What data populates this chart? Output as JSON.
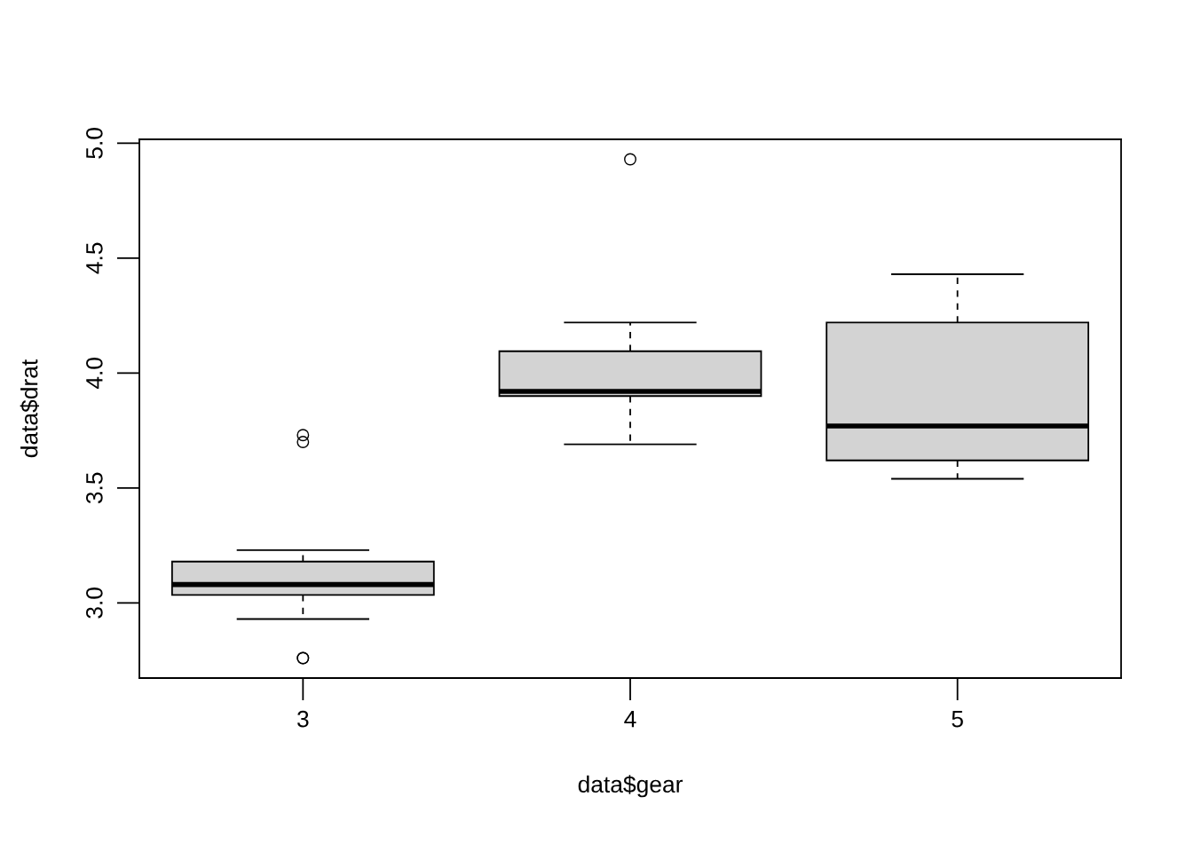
{
  "chart_data": {
    "type": "box",
    "xlabel": "data$gear",
    "ylabel": "data$drat",
    "categories": [
      "3",
      "4",
      "5"
    ],
    "boxes": [
      {
        "low": 2.93,
        "q1": 3.035,
        "median": 3.08,
        "q3": 3.18,
        "high": 3.23,
        "outliers": [
          2.76,
          2.76,
          3.7,
          3.73
        ]
      },
      {
        "low": 3.69,
        "q1": 3.9,
        "median": 3.92,
        "q3": 4.095,
        "high": 4.22,
        "outliers": [
          4.93
        ]
      },
      {
        "low": 3.54,
        "q1": 3.62,
        "median": 3.77,
        "q3": 4.22,
        "high": 4.43
      }
    ],
    "color": "#d3d3d3",
    "ylim": [
      2.6732,
      5.0168
    ],
    "yticks": [
      {
        "value": 3.0,
        "label": "3.0"
      },
      {
        "value": 3.5,
        "label": "3.5"
      },
      {
        "value": 4.0,
        "label": "4.0"
      },
      {
        "value": 4.5,
        "label": "4.5"
      },
      {
        "value": 5.0,
        "label": "5.0"
      }
    ],
    "grid": false,
    "marker": "circle"
  }
}
